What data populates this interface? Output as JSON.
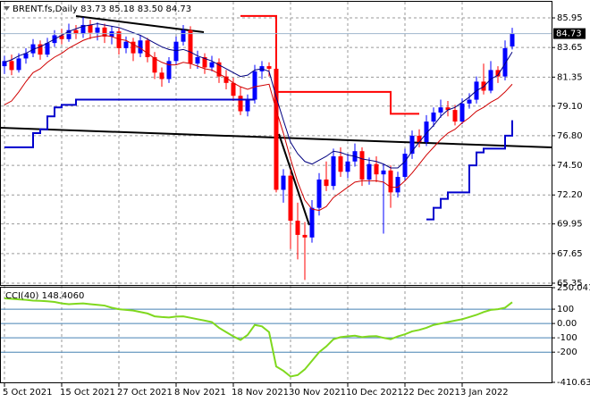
{
  "chart_data": [
    {
      "type": "candlestick",
      "title": "BRENT.fs,Daily  83.73 85.18 83.50 84.73",
      "categories": [
        "5 Oct 2021",
        null,
        null,
        null,
        null,
        null,
        null,
        null,
        "15 Oct 2021",
        null,
        null,
        null,
        null,
        null,
        null,
        null,
        "27 Oct 2021",
        null,
        null,
        null,
        null,
        null,
        null,
        null,
        "8 Nov 2021",
        null,
        null,
        null,
        null,
        null,
        null,
        null,
        "18 Nov 2021",
        null,
        null,
        null,
        null,
        null,
        null,
        null,
        "30 Nov 2021",
        null,
        null,
        null,
        null,
        null,
        null,
        null,
        "10 Dec 2021",
        null,
        null,
        null,
        null,
        null,
        null,
        null,
        "22 Dec 2021",
        null,
        null,
        null,
        null,
        null,
        null,
        null,
        "3 Jan 2022",
        null,
        null,
        null,
        null,
        null,
        null,
        null
      ],
      "open": [
        82.2,
        82.6,
        81.9,
        82.8,
        83.2,
        83.9,
        83.1,
        84.0,
        84.6,
        84.3,
        85.0,
        84.7,
        85.4,
        84.8,
        85.2,
        84.5,
        84.9,
        83.6,
        84.1,
        83.2,
        84.2,
        82.9,
        81.7,
        81.2,
        82.6,
        84.1,
        85.0,
        82.4,
        82.9,
        82.1,
        82.5,
        81.4,
        80.9,
        79.9,
        78.7,
        79.6,
        81.8,
        82.2,
        82.0,
        72.6,
        73.7,
        70.2,
        69.1,
        68.9,
        71.2,
        73.4,
        72.9,
        75.2,
        74.0,
        74.8,
        75.6,
        73.4,
        74.6,
        73.8,
        74.1,
        72.4,
        73.6,
        75.4,
        76.8,
        76.3,
        77.9,
        78.6,
        79.0,
        78.8,
        77.9,
        79.3,
        79.6,
        81.0,
        80.3,
        81.9,
        81.4,
        83.73
      ],
      "high": [
        83.0,
        83.1,
        83.2,
        83.6,
        84.3,
        84.2,
        84.4,
        85.0,
        85.1,
        85.5,
        85.4,
        86.0,
        85.8,
        85.6,
        85.5,
        85.3,
        85.2,
        84.5,
        84.4,
        84.6,
        84.4,
        83.3,
        82.1,
        82.9,
        84.5,
        85.4,
        85.3,
        83.4,
        83.2,
        83.0,
        82.8,
        81.9,
        81.3,
        80.6,
        80.0,
        82.3,
        82.6,
        82.5,
        82.3,
        74.2,
        74.2,
        71.6,
        70.1,
        71.8,
        73.9,
        74.8,
        75.8,
        75.9,
        75.4,
        76.2,
        75.9,
        75.1,
        75.2,
        74.6,
        74.5,
        74.0,
        75.8,
        77.2,
        77.3,
        78.4,
        79.0,
        79.6,
        79.5,
        79.2,
        79.7,
        80.1,
        81.4,
        82.4,
        82.6,
        82.2,
        84.2,
        85.18
      ],
      "low": [
        81.6,
        81.5,
        81.7,
        82.4,
        82.9,
        82.7,
        82.9,
        83.7,
        83.9,
        84.1,
        84.3,
        84.4,
        84.3,
        84.2,
        84.0,
        83.9,
        83.1,
        83.2,
        82.6,
        82.9,
        82.5,
        81.2,
        80.6,
        80.9,
        82.3,
        83.8,
        82.0,
        82.0,
        81.6,
        81.8,
        80.9,
        80.4,
        79.5,
        78.4,
        78.3,
        79.3,
        81.2,
        81.4,
        72.4,
        71.6,
        68.0,
        67.2,
        65.6,
        68.5,
        70.6,
        72.5,
        72.6,
        73.6,
        73.5,
        74.4,
        72.9,
        73.0,
        73.2,
        69.2,
        71.2,
        72.0,
        73.3,
        75.0,
        75.9,
        76.0,
        77.5,
        78.2,
        78.3,
        77.6,
        77.7,
        78.9,
        79.3,
        80.0,
        80.1,
        80.9,
        81.1,
        83.5
      ],
      "close": [
        82.6,
        81.9,
        82.8,
        83.2,
        83.9,
        83.1,
        84.0,
        84.6,
        84.3,
        85.0,
        84.7,
        85.4,
        84.8,
        85.2,
        84.5,
        84.9,
        83.6,
        84.1,
        83.2,
        84.2,
        82.9,
        81.7,
        81.2,
        82.6,
        84.1,
        85.0,
        82.4,
        82.9,
        82.1,
        82.5,
        81.4,
        80.9,
        79.9,
        78.7,
        79.6,
        81.8,
        82.2,
        82.0,
        72.6,
        73.7,
        70.2,
        69.1,
        68.9,
        71.2,
        73.4,
        72.9,
        75.2,
        74.0,
        74.8,
        75.6,
        73.4,
        74.6,
        73.8,
        74.1,
        72.4,
        73.6,
        75.4,
        76.8,
        76.3,
        77.9,
        78.6,
        79.0,
        78.8,
        77.9,
        79.3,
        79.6,
        81.0,
        80.3,
        81.9,
        81.4,
        83.6,
        84.73
      ],
      "up_color": "#0000ff",
      "down_color": "#ff0000",
      "series": [
        {
          "color": "#d00000",
          "width": 1,
          "step": false,
          "values": [
            79.2,
            79.5,
            80.2,
            81.0,
            81.7,
            82.0,
            82.5,
            82.9,
            83.2,
            83.6,
            83.9,
            84.2,
            84.4,
            84.5,
            84.6,
            84.5,
            84.3,
            84.2,
            83.9,
            83.6,
            83.2,
            82.8,
            82.5,
            82.3,
            82.3,
            82.5,
            82.4,
            82.2,
            82.0,
            81.9,
            81.6,
            81.3,
            80.9,
            80.6,
            80.4,
            80.6,
            80.7,
            80.8,
            78.8,
            77.0,
            75.0,
            73.2,
            71.8,
            71.1,
            71.0,
            71.3,
            72.0,
            72.4,
            72.8,
            73.2,
            73.3,
            73.3,
            73.3,
            73.2,
            72.8,
            72.8,
            73.3,
            73.9,
            74.6,
            75.3,
            75.9,
            76.5,
            77.0,
            77.3,
            77.8,
            78.2,
            78.7,
            79.0,
            79.4,
            79.7,
            80.2,
            80.8
          ]
        },
        {
          "color": "#000080",
          "width": 1,
          "step": false,
          "values": [
            82.5,
            82.7,
            83.0,
            83.2,
            83.5,
            83.7,
            84.0,
            84.3,
            84.6,
            84.9,
            85.1,
            85.3,
            85.4,
            85.5,
            85.4,
            85.3,
            85.2,
            85.0,
            84.8,
            84.6,
            84.3,
            84.0,
            83.7,
            83.5,
            83.4,
            83.5,
            83.3,
            83.0,
            82.8,
            82.6,
            82.3,
            82.0,
            81.7,
            81.4,
            81.5,
            81.9,
            82.0,
            81.8,
            79.8,
            78.0,
            76.3,
            75.4,
            74.8,
            74.6,
            74.9,
            75.2,
            75.6,
            75.5,
            75.3,
            75.2,
            75.0,
            74.9,
            74.8,
            74.6,
            74.3,
            74.3,
            74.8,
            75.6,
            76.3,
            77.0,
            77.6,
            78.3,
            78.8,
            79.0,
            79.4,
            79.8,
            80.3,
            80.6,
            81.2,
            81.5,
            82.4,
            83.3
          ]
        },
        {
          "color": "#ff0000",
          "width": 2,
          "step": true,
          "values": [
            null,
            null,
            null,
            null,
            null,
            null,
            null,
            null,
            null,
            null,
            null,
            null,
            null,
            null,
            null,
            null,
            null,
            null,
            null,
            null,
            null,
            null,
            null,
            null,
            null,
            null,
            null,
            null,
            null,
            null,
            null,
            null,
            null,
            86.1,
            86.1,
            86.1,
            86.1,
            86.1,
            80.2,
            80.2,
            80.2,
            80.2,
            80.2,
            80.2,
            80.2,
            80.2,
            80.2,
            80.2,
            80.2,
            80.2,
            80.2,
            80.2,
            80.2,
            80.2,
            78.5,
            78.5,
            78.5,
            78.5,
            78.5,
            null,
            null,
            null,
            null,
            null,
            null,
            null,
            null,
            null,
            null,
            null,
            null,
            null
          ]
        },
        {
          "color": "#0000cd",
          "width": 2,
          "step": true,
          "values": [
            75.9,
            75.9,
            75.9,
            75.9,
            77.0,
            77.3,
            78.3,
            79.0,
            79.2,
            79.2,
            79.6,
            79.6,
            79.6,
            79.6,
            79.6,
            79.6,
            79.6,
            79.6,
            79.6,
            79.6,
            79.6,
            79.6,
            79.6,
            79.6,
            79.6,
            79.6,
            79.6,
            79.6,
            79.6,
            79.6,
            79.6,
            79.6,
            79.6,
            79.6,
            79.6,
            79.6,
            null,
            null,
            null,
            null,
            null,
            null,
            null,
            null,
            null,
            null,
            null,
            null,
            null,
            null,
            null,
            null,
            null,
            null,
            null,
            null,
            null,
            null,
            null,
            70.3,
            71.2,
            71.9,
            72.4,
            72.4,
            72.4,
            74.5,
            75.5,
            75.8,
            75.8,
            75.8,
            76.8,
            78.0
          ]
        }
      ],
      "ylim": [
        65.28,
        87.2
      ],
      "yticks": [
        85.95,
        83.65,
        81.35,
        {
          "value": 79.1,
          "label": "79.10"
        },
        {
          "value": 76.8,
          "label": "76.80"
        },
        {
          "value": 74.5,
          "label": "74.50"
        },
        {
          "value": 72.2,
          "label": "72.20"
        },
        69.95,
        67.65,
        65.35
      ],
      "grid": true
    },
    {
      "type": "line",
      "title": "CCI(40) 148.4060",
      "color": "#7fd81e",
      "values": [
        175,
        172,
        168,
        165,
        160,
        158,
        155,
        150,
        140,
        135,
        138,
        140,
        135,
        130,
        125,
        110,
        100,
        95,
        90,
        80,
        70,
        50,
        45,
        42,
        48,
        50,
        40,
        30,
        20,
        10,
        -30,
        -60,
        -90,
        -115,
        -80,
        -10,
        -20,
        -60,
        -300,
        -330,
        -370,
        -360,
        -320,
        -260,
        -200,
        -160,
        -110,
        -95,
        -90,
        -85,
        -95,
        -90,
        -88,
        -100,
        -110,
        -90,
        -75,
        -55,
        -45,
        -30,
        -10,
        0,
        10,
        20,
        30,
        45,
        60,
        80,
        95,
        100,
        110,
        148.406
      ],
      "ylim": [
        -410.632,
        250.0412
      ],
      "yticks": [
        250.0412,
        100,
        {
          "value": 0,
          "label": "0.00"
        },
        -100,
        -200,
        -410.632
      ],
      "grid": true
    }
  ]
}
